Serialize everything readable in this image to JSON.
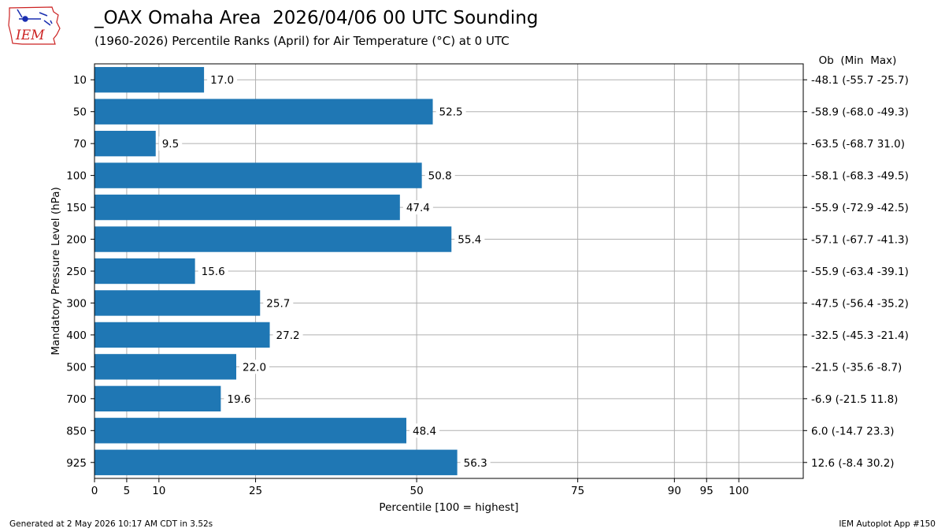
{
  "header": {
    "title": "_OAX Omaha Area  2026/04/06 00 UTC Sounding",
    "subtitle": "(1960-2026) Percentile Ranks (April) for Air Temperature (°C) at 0 UTC"
  },
  "logo": {
    "text": "IEM",
    "icon": "iem-iowa-map-logo"
  },
  "footer": {
    "left": "Generated at 2 May 2026 10:17 AM CDT in 3.52s",
    "right": "IEM Autoplot App #150"
  },
  "colors": {
    "bar": "#1f77b4",
    "grid": "#b0b0b0",
    "logo_red": "#cc2222",
    "logo_blue": "#1a2fb0"
  },
  "chart_data": {
    "type": "bar",
    "orientation": "horizontal",
    "xlabel": "Percentile [100 = highest]",
    "ylabel": "Mandatory Pressure Level (hPa)",
    "right_header": "Ob  (Min  Max)",
    "xlim": [
      0,
      110
    ],
    "xticks": [
      0,
      5,
      10,
      25,
      50,
      75,
      90,
      95,
      100
    ],
    "grid": true,
    "categories": [
      "10",
      "50",
      "70",
      "100",
      "150",
      "200",
      "250",
      "300",
      "400",
      "500",
      "700",
      "850",
      "925"
    ],
    "values": [
      17.0,
      52.5,
      9.5,
      50.8,
      47.4,
      55.4,
      15.6,
      25.7,
      27.2,
      22.0,
      19.6,
      48.4,
      56.3
    ],
    "value_labels": [
      "17.0",
      "52.5",
      "9.5",
      "50.8",
      "47.4",
      "55.4",
      "15.6",
      "25.7",
      "27.2",
      "22.0",
      "19.6",
      "48.4",
      "56.3"
    ],
    "right_labels": [
      "-48.1 (-55.7 -25.7)",
      "-58.9 (-68.0 -49.3)",
      "-63.5 (-68.7 31.0)",
      "-58.1 (-68.3 -49.5)",
      "-55.9 (-72.9 -42.5)",
      "-57.1 (-67.7 -41.3)",
      "-55.9 (-63.4 -39.1)",
      "-47.5 (-56.4 -35.2)",
      "-32.5 (-45.3 -21.4)",
      "-21.5 (-35.6 -8.7)",
      "-6.9 (-21.5 11.8)",
      "6.0 (-14.7 23.3)",
      "12.6 (-8.4 30.2)"
    ]
  }
}
